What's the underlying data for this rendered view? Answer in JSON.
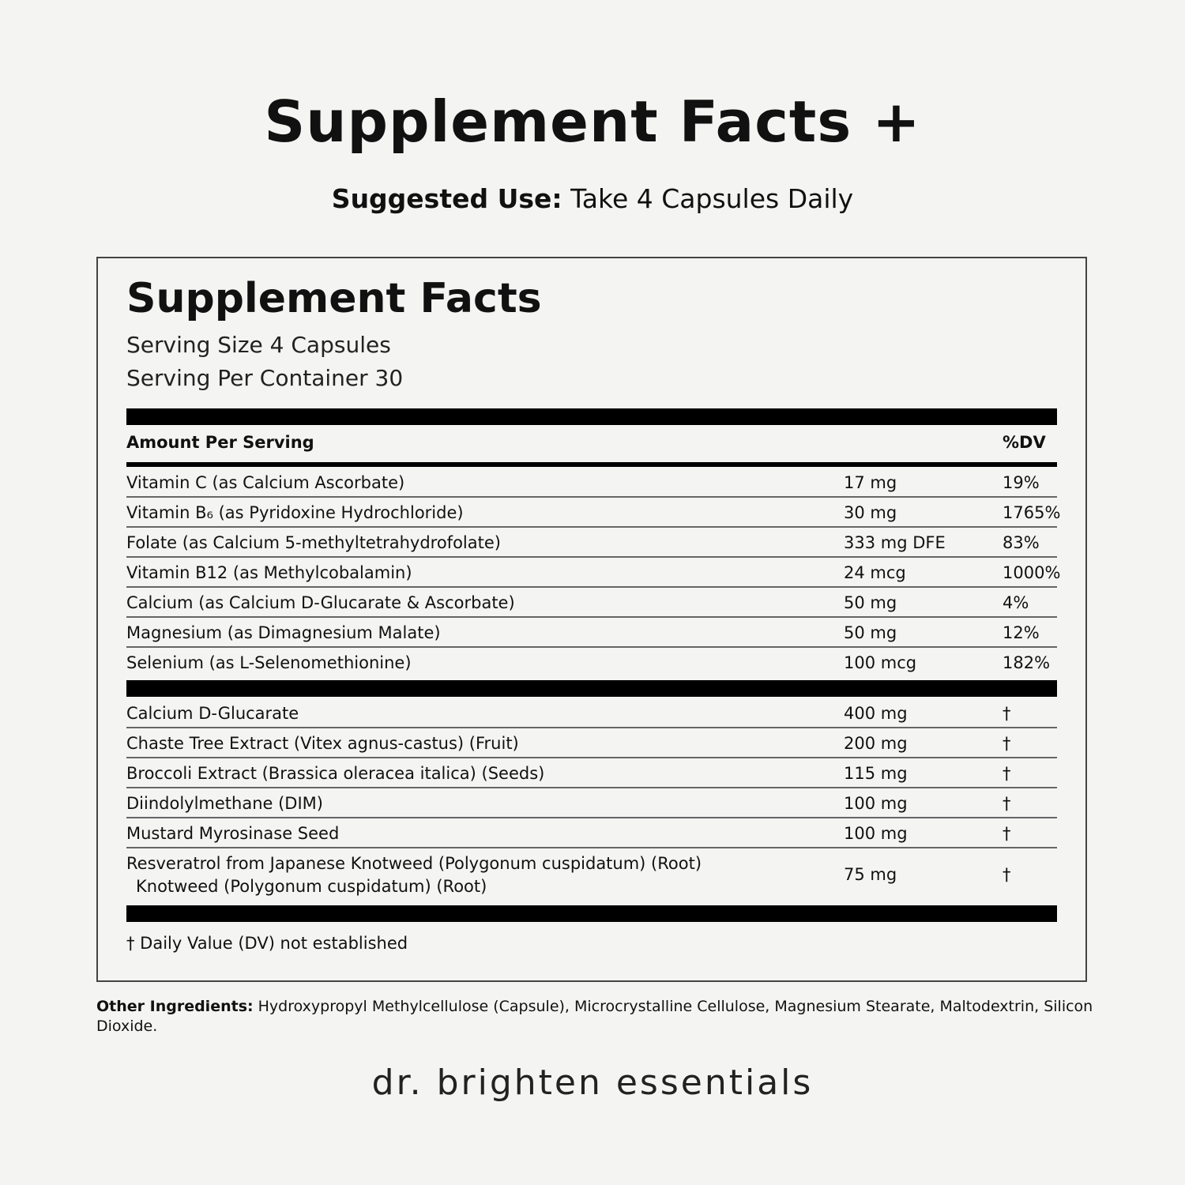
{
  "header": {
    "title": "Supplement Facts +",
    "suggested_use_label": "Suggested Use:",
    "suggested_use_value": " Take 4 Capsules Daily"
  },
  "facts": {
    "title": "Supplement Facts",
    "serving_size": "Serving Size 4 Capsules",
    "servings_per_container": "Serving Per Container 30",
    "amount_header": "Amount Per Serving",
    "dv_header": "%DV",
    "vitamins": [
      {
        "name": "Vitamin C (as Calcium Ascorbate)",
        "amount": "17 mg",
        "dv": "19%"
      },
      {
        "name": "Vitamin B₆ (as Pyridoxine Hydrochloride)",
        "amount": "30 mg",
        "dv": "1765%"
      },
      {
        "name": "Folate (as Calcium 5-methyltetrahydrofolate)",
        "amount": "333 mg DFE",
        "dv": "83%"
      },
      {
        "name": "Vitamin B12 (as Methylcobalamin)",
        "amount": "24 mcg",
        "dv": "1000%"
      },
      {
        "name": "Calcium (as Calcium D-Glucarate & Ascorbate)",
        "amount": "50 mg",
        "dv": "4%"
      },
      {
        "name": "Magnesium (as Dimagnesium Malate)",
        "amount": "50 mg",
        "dv": "12%"
      },
      {
        "name": "Selenium (as L-Selenomethionine)",
        "amount": "100 mcg",
        "dv": "182%"
      }
    ],
    "blend": [
      {
        "name": "Calcium D-Glucarate",
        "amount": "400 mg",
        "dv": "†"
      },
      {
        "name": "Chaste Tree Extract (Vitex agnus-castus) (Fruit)",
        "amount": "200 mg",
        "dv": "†"
      },
      {
        "name": "Broccoli Extract (Brassica oleracea italica) (Seeds)",
        "amount": "115 mg",
        "dv": "†"
      },
      {
        "name": "Diindolylmethane (DIM)",
        "amount": "100 mg",
        "dv": "†"
      },
      {
        "name": "Mustard Myrosinase Seed",
        "amount": "100 mg",
        "dv": "†"
      },
      {
        "name": "Resveratrol from Japanese Knotweed (Polygonum cuspidatum) (Root)",
        "sub": "Knotweed (Polygonum cuspidatum) (Root)",
        "amount": "75 mg",
        "dv": "†"
      }
    ],
    "footnote": "† Daily Value (DV) not established"
  },
  "other_ingredients": {
    "label": "Other Ingredients:",
    "value": " Hydroxypropyl Methylcellulose (Capsule), Microcrystalline Cellulose, Magnesium Stearate, Maltodextrin, Silicon Dioxide."
  },
  "brand": "dr. brighten essentials"
}
